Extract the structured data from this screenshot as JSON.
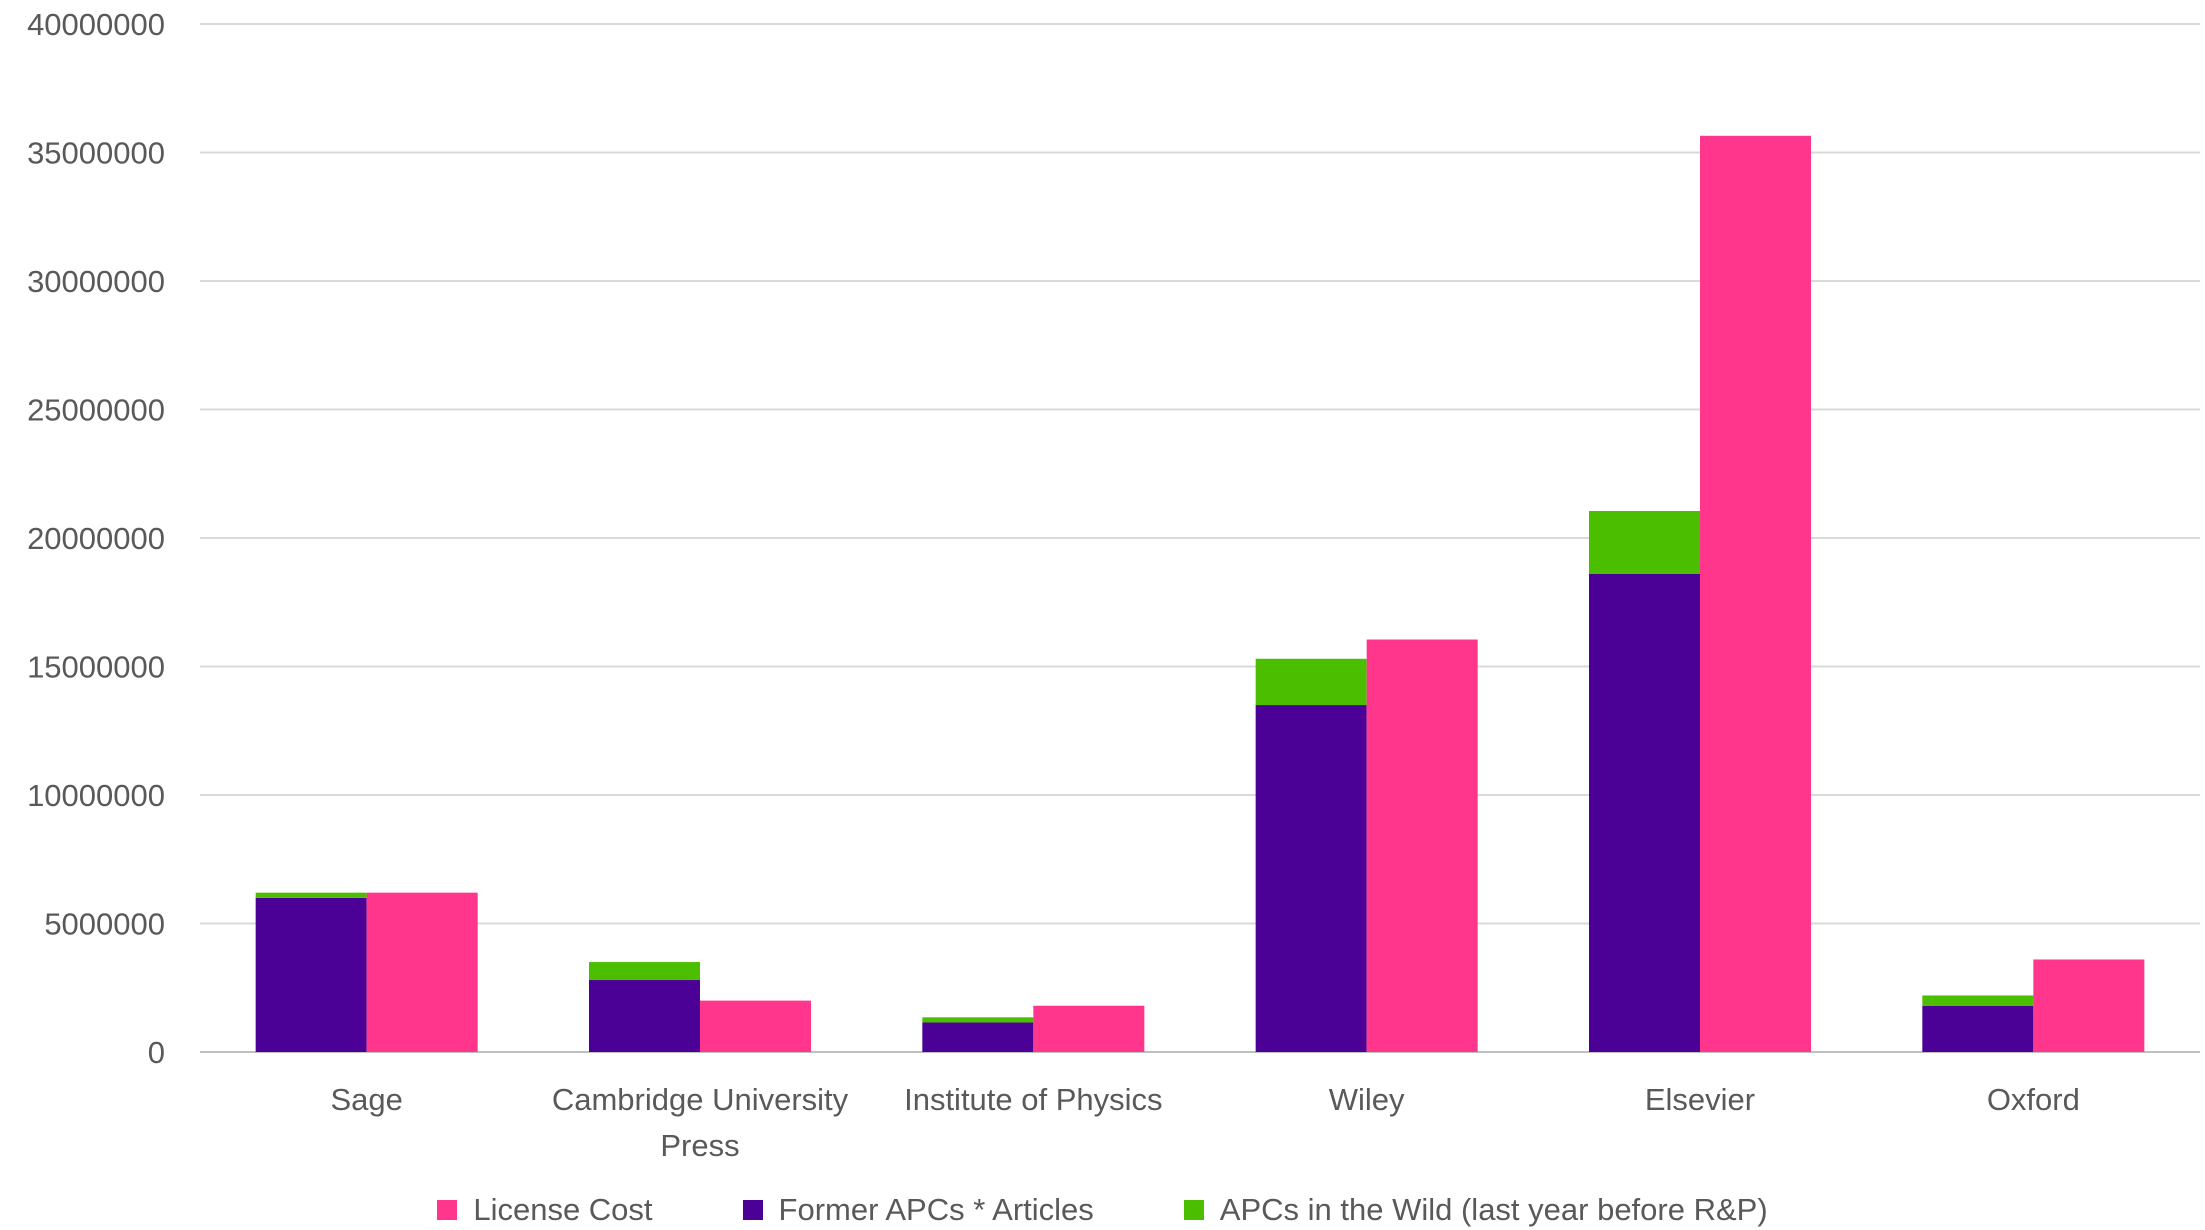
{
  "chart_data": {
    "type": "bar",
    "categories": [
      "Sage",
      "Cambridge University Press",
      "Institute of Physics",
      "Wiley",
      "Elsevier",
      "Oxford"
    ],
    "category_lines": [
      [
        "Sage"
      ],
      [
        "Cambridge University",
        "Press"
      ],
      [
        "Institute of Physics"
      ],
      [
        "Wiley"
      ],
      [
        "Elsevier"
      ],
      [
        "Oxford"
      ]
    ],
    "series": [
      {
        "name": "Former APCs * Articles",
        "stack": "apc",
        "color": "#4B0096",
        "values": [
          6000000,
          2800000,
          1150000,
          13500000,
          18600000,
          1800000
        ]
      },
      {
        "name": "APCs in the Wild (last year before R&P)",
        "stack": "apc",
        "color": "#4CBE00",
        "values": [
          200000,
          700000,
          200000,
          1800000,
          2450000,
          400000
        ]
      },
      {
        "name": "License Cost",
        "stack": "license",
        "color": "#FF368C",
        "values": [
          6200000,
          2000000,
          1800000,
          16050000,
          35650000,
          3600000
        ]
      }
    ],
    "legend_order": [
      "License Cost",
      "Former APCs * Articles",
      "APCs in the Wild (last year before R&P)"
    ],
    "legend_position": "bottom",
    "ylim": [
      0,
      40000000
    ],
    "yticks": [
      0,
      5000000,
      10000000,
      15000000,
      20000000,
      25000000,
      30000000,
      35000000,
      40000000
    ],
    "ytick_labels": [
      "0",
      "5000000",
      "10000000",
      "15000000",
      "20000000",
      "25000000",
      "30000000",
      "35000000",
      "40000000"
    ],
    "grid": true,
    "title": "",
    "xlabel": "",
    "ylabel": ""
  }
}
